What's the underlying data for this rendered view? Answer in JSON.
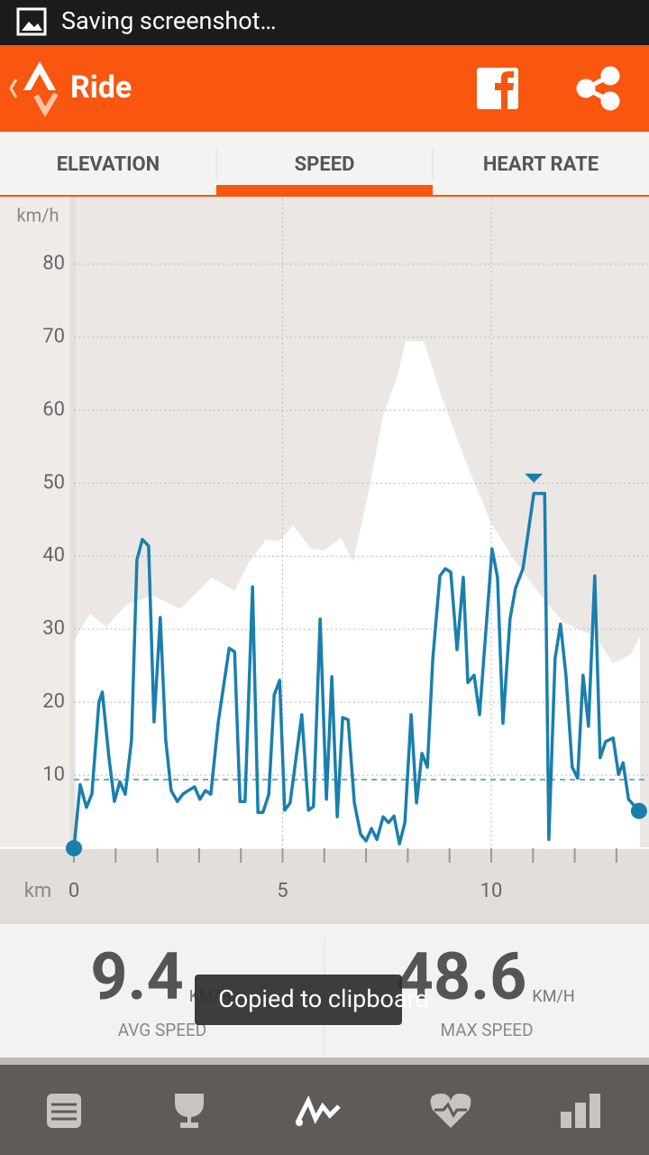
{
  "status_bar": {
    "text": "Saving screenshot…"
  },
  "app_bar": {
    "title": "Ride"
  },
  "tabs": {
    "items": [
      "ELEVATION",
      "SPEED",
      "HEART RATE"
    ],
    "selected": 1
  },
  "chart_data": {
    "type": "line",
    "y_label": "km/h",
    "x_label": "km",
    "xlim": [
      0,
      13.78
    ],
    "ylim": [
      0,
      89
    ],
    "xticks": [
      0,
      5,
      10
    ],
    "minor_xticks": [
      1,
      2,
      3,
      4,
      6,
      7,
      8,
      9,
      11,
      12,
      13
    ],
    "yticks": [
      10,
      20,
      30,
      40,
      50,
      60,
      70,
      80
    ],
    "grid": true,
    "average": 9.4,
    "max": 48.6,
    "x": [
      0,
      0.15,
      0.3,
      0.43,
      0.6,
      0.68,
      0.84,
      0.97,
      1.1,
      1.23,
      1.38,
      1.51,
      1.64,
      1.79,
      1.92,
      2.07,
      2.2,
      2.33,
      2.48,
      2.61,
      2.74,
      2.89,
      3.02,
      3.15,
      3.28,
      3.46,
      3.72,
      3.85,
      3.98,
      4.1,
      4.28,
      4.41,
      4.53,
      4.67,
      4.8,
      4.93,
      5.05,
      5.18,
      5.46,
      5.62,
      5.74,
      5.9,
      6.05,
      6.18,
      6.31,
      6.44,
      6.57,
      6.72,
      6.87,
      7.0,
      7.13,
      7.26,
      7.41,
      7.54,
      7.67,
      7.8,
      7.93,
      8.08,
      8.21,
      8.34,
      8.47,
      8.6,
      8.77,
      8.9,
      9.03,
      9.18,
      9.33,
      9.44,
      9.59,
      9.72,
      10.02,
      10.15,
      10.28,
      10.45,
      10.58,
      10.76,
      11.02,
      11.28,
      11.38,
      11.53,
      11.66,
      11.79,
      11.94,
      12.07,
      12.2,
      12.33,
      12.48,
      12.61,
      12.74,
      12.92,
      13.05,
      13.16,
      13.29,
      13.54
    ],
    "series": [
      {
        "color": "#1a7fad",
        "values": [
          0,
          8.7,
          5.6,
          7.4,
          20,
          21.4,
          12.4,
          6.4,
          9.1,
          7.4,
          14.8,
          39.5,
          42.3,
          41.4,
          17.3,
          31.6,
          14.8,
          7.9,
          6.4,
          7.4,
          7.9,
          8.4,
          6.7,
          7.9,
          7.4,
          17.3,
          27.4,
          26.9,
          6.4,
          6.4,
          35.8,
          4.9,
          4.9,
          7.4,
          21,
          23,
          5.2,
          6.2,
          18.3,
          5.2,
          5.7,
          31.4,
          6.7,
          23.5,
          4.3,
          17.9,
          17.6,
          6.2,
          1.9,
          1.0,
          2.7,
          1.2,
          4.3,
          3.5,
          4.4,
          0.6,
          3.5,
          18.3,
          6.2,
          13,
          11.1,
          26,
          37.3,
          38.3,
          37.8,
          27.2,
          37.1,
          22.7,
          23.7,
          18.3,
          41,
          37.1,
          17.1,
          31.4,
          35.6,
          38.3,
          48.6,
          48.6,
          1.2,
          26,
          30.7,
          23.7,
          11.1,
          9.6,
          23.7,
          16.7,
          37.3,
          12.4,
          14.6,
          15.1,
          10.1,
          11.7,
          6.7,
          5.1
        ]
      }
    ]
  },
  "stats": [
    {
      "value": "9.4",
      "unit": "KM/H",
      "label": "AVG SPEED"
    },
    {
      "value": "48.6",
      "unit": "KM/H",
      "label": "MAX SPEED"
    }
  ],
  "toast": {
    "text": "Copied to clipboard"
  }
}
